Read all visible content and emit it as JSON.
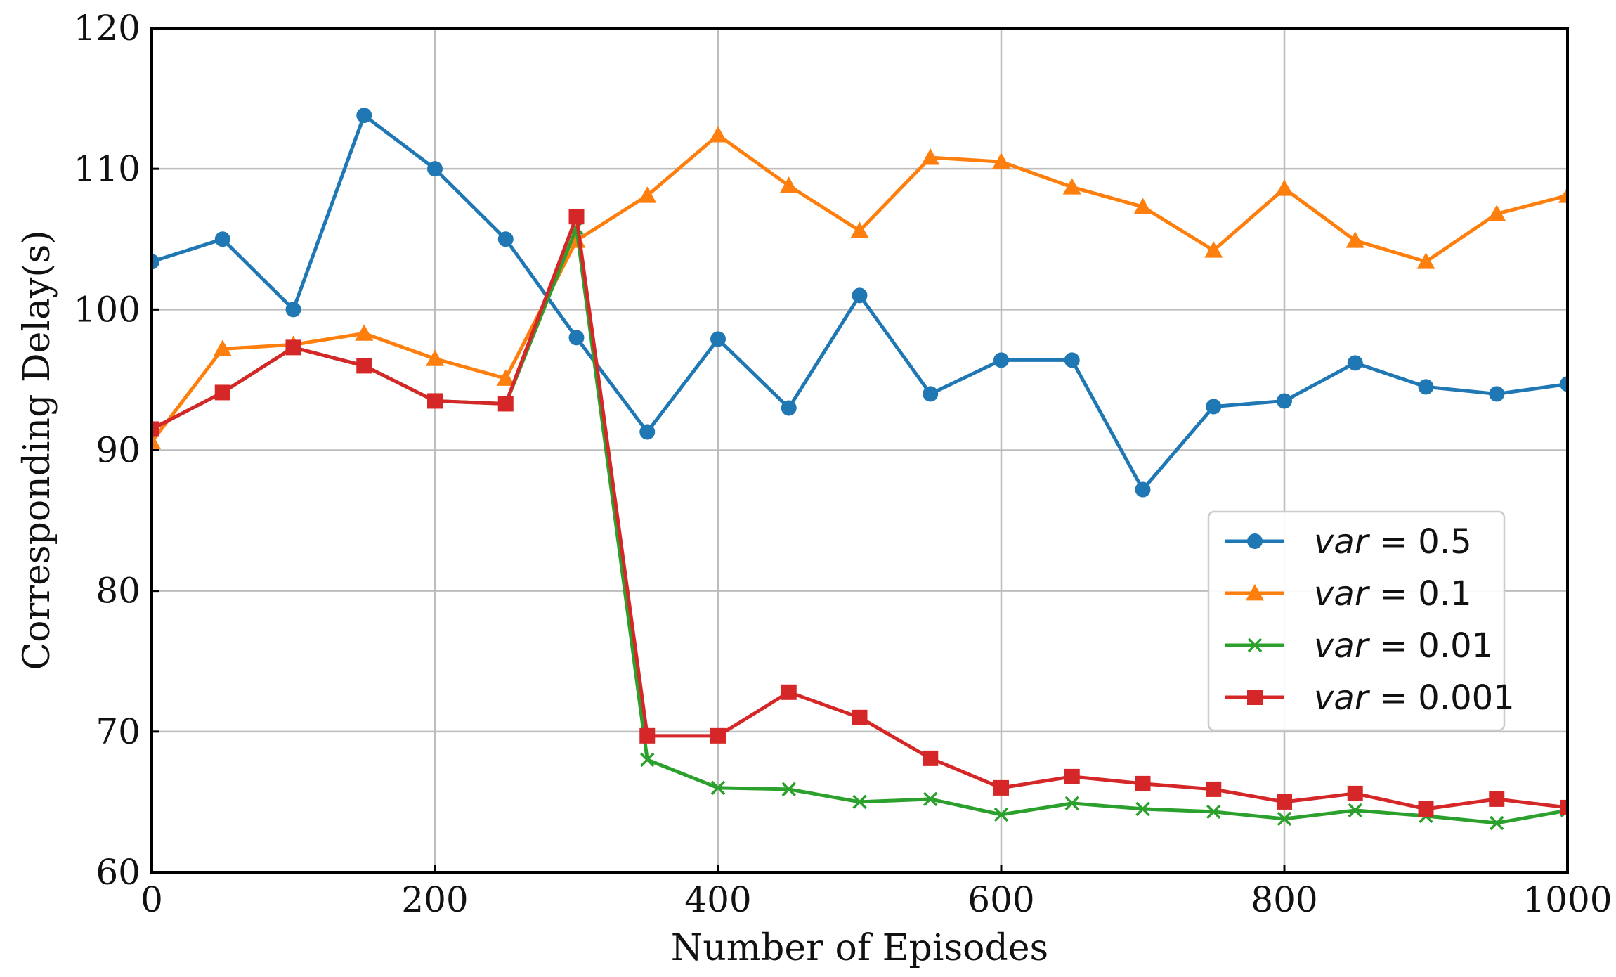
{
  "chart_data": {
    "type": "line",
    "title": "",
    "xlabel": "Number of Episodes",
    "ylabel": "Corresponding  Delay(s)",
    "xlim": [
      0,
      1000
    ],
    "ylim": [
      60,
      120
    ],
    "xticks": [
      0,
      200,
      400,
      600,
      800,
      1000
    ],
    "yticks": [
      60,
      70,
      80,
      90,
      100,
      110,
      120
    ],
    "grid": true,
    "legend_position": "center-right",
    "x": [
      0,
      50,
      100,
      150,
      200,
      250,
      300,
      350,
      400,
      450,
      500,
      550,
      600,
      650,
      700,
      750,
      800,
      850,
      900,
      950,
      1000
    ],
    "series": [
      {
        "name": "var = 0.5",
        "legend_var": "var",
        "legend_value": "= 0.5",
        "color": "#1f77b4",
        "marker": "circle",
        "values": [
          103.4,
          105.0,
          100.0,
          113.8,
          110.0,
          105.0,
          98.0,
          91.3,
          97.9,
          93.0,
          101.0,
          94.0,
          96.4,
          96.4,
          87.2,
          93.1,
          93.5,
          96.2,
          94.5,
          94.0,
          94.7
        ]
      },
      {
        "name": "var = 0.1",
        "legend_var": "var",
        "legend_value": "= 0.1",
        "color": "#ff7f0e",
        "marker": "triangle",
        "values": [
          90.6,
          97.2,
          97.5,
          98.3,
          96.5,
          95.1,
          104.9,
          108.1,
          112.4,
          108.8,
          105.6,
          110.8,
          110.5,
          108.7,
          107.3,
          104.2,
          108.6,
          104.9,
          103.4,
          106.8,
          108.1
        ]
      },
      {
        "name": "var = 0.01",
        "legend_var": "var",
        "legend_value": "= 0.01",
        "color": "#2ca02c",
        "marker": "x",
        "values": [
          91.5,
          94.1,
          97.3,
          96.0,
          93.5,
          93.3,
          105.8,
          68.0,
          66.0,
          65.9,
          65.0,
          65.2,
          64.1,
          64.9,
          64.5,
          64.3,
          63.8,
          64.4,
          64.0,
          63.5,
          64.4
        ]
      },
      {
        "name": "var = 0.001",
        "legend_var": "var",
        "legend_value": "= 0.001",
        "color": "#d62728",
        "marker": "square",
        "values": [
          91.5,
          94.1,
          97.3,
          96.0,
          93.5,
          93.3,
          106.6,
          69.7,
          69.7,
          72.8,
          71.0,
          68.1,
          66.0,
          66.8,
          66.3,
          65.9,
          65.0,
          65.6,
          64.5,
          65.2,
          64.6
        ]
      }
    ]
  }
}
